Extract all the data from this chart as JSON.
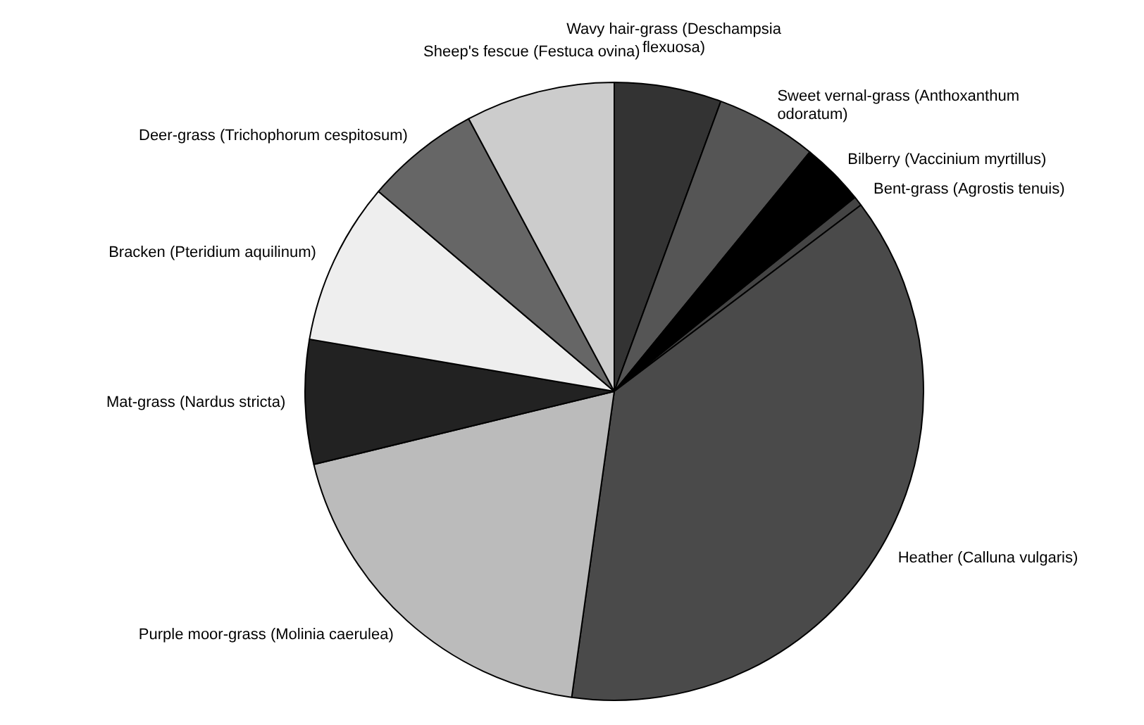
{
  "chart_data": {
    "type": "pie",
    "categories": [
      "Wavy hair-grass (Deschampsia flexuosa)",
      "Sweet vernal-grass (Anthoxanthum odoratum)",
      "Bilberry (Vaccinium myrtillus)",
      "Bent-grass (Agrostis tenuis)",
      "Heather (Calluna vulgaris)",
      "Purple moor-grass (Molinia caerulea)",
      "Mat-grass (Nardus stricta)",
      "Bracken (Pteridium aquilinum)",
      "Deer-grass (Trichophorum cespitosum)",
      "Sheep's fescue (Festuca ovina)"
    ],
    "values": [
      5.6,
      5.3,
      3.3,
      0.5,
      37.5,
      19,
      6.5,
      8.5,
      6,
      7.8
    ],
    "colors": [
      "#333333",
      "#555555",
      "#000000",
      "#444444",
      "#4a4a4a",
      "#bbbbbb",
      "#222222",
      "#eeeeee",
      "#666666",
      "#cccccc"
    ],
    "legend": false
  }
}
